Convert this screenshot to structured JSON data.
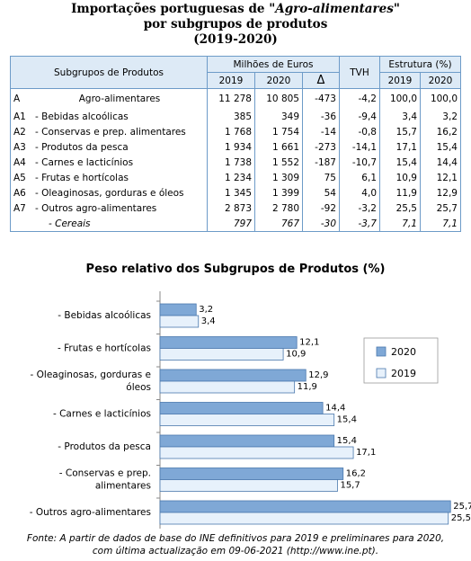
{
  "title": {
    "line1_prefix": "Importações portuguesas de ",
    "line1_italic": "\"Agro-alimentares\"",
    "line2": "por subgrupos de produtos",
    "line3": "(2019-2020)"
  },
  "table": {
    "header_subgrupos": "Subgrupos de Produtos",
    "header_milhoes": "Milhões de Euros",
    "header_y2019": "2019",
    "header_y2020": "2020",
    "header_delta": "Δ",
    "header_tvh": "TVH",
    "header_estrutura": "Estrutura (%)",
    "header_e2019": "2019",
    "header_e2020": "2020",
    "rows": [
      {
        "code": "A",
        "name": "Agro-alimentares",
        "v2019": "11 278",
        "v2020": "10 805",
        "delta": "-473",
        "tvh": "-4,2",
        "e2019": "100,0",
        "e2020": "100,0"
      },
      {
        "code": "A1",
        "name": "- Bebidas alcoólicas",
        "v2019": "385",
        "v2020": "349",
        "delta": "-36",
        "tvh": "-9,4",
        "e2019": "3,4",
        "e2020": "3,2"
      },
      {
        "code": "A2",
        "name": "- Conservas e prep. alimentares",
        "v2019": "1 768",
        "v2020": "1 754",
        "delta": "-14",
        "tvh": "-0,8",
        "e2019": "15,7",
        "e2020": "16,2"
      },
      {
        "code": "A3",
        "name": "- Produtos da pesca",
        "v2019": "1 934",
        "v2020": "1 661",
        "delta": "-273",
        "tvh": "-14,1",
        "e2019": "17,1",
        "e2020": "15,4"
      },
      {
        "code": "A4",
        "name": "- Carnes e lacticínios",
        "v2019": "1 738",
        "v2020": "1 552",
        "delta": "-187",
        "tvh": "-10,7",
        "e2019": "15,4",
        "e2020": "14,4"
      },
      {
        "code": "A5",
        "name": "- Frutas e hortícolas",
        "v2019": "1 234",
        "v2020": "1 309",
        "delta": "75",
        "tvh": "6,1",
        "e2019": "10,9",
        "e2020": "12,1"
      },
      {
        "code": "A6",
        "name": "- Oleaginosas, gorduras e óleos",
        "v2019": "1 345",
        "v2020": "1 399",
        "delta": "54",
        "tvh": "4,0",
        "e2019": "11,9",
        "e2020": "12,9"
      },
      {
        "code": "A7",
        "name": "- Outros agro-alimentares",
        "v2019": "2 873",
        "v2020": "2 780",
        "delta": "-92",
        "tvh": "-3,2",
        "e2019": "25,5",
        "e2020": "25,7"
      },
      {
        "code": "",
        "name": "- Cereais",
        "v2019": "797",
        "v2020": "767",
        "delta": "-30",
        "tvh": "-3,7",
        "e2019": "7,1",
        "e2020": "7,1"
      }
    ]
  },
  "chart_data": {
    "type": "bar",
    "orientation": "horizontal",
    "title": "Peso relativo dos Subgrupos de Produtos (%)",
    "categories": [
      "- Bebidas alcoólicas",
      "- Frutas e hortícolas",
      "- Oleaginosas, gorduras e óleos",
      "- Carnes e lacticínios",
      "- Produtos da pesca",
      "- Conservas e prep. alimentares",
      "- Outros agro-alimentares"
    ],
    "category_lines": [
      [
        "- Bebidas alcoólicas"
      ],
      [
        "- Frutas e hortícolas"
      ],
      [
        "- Oleaginosas, gorduras e",
        "óleos"
      ],
      [
        "- Carnes e lacticínios"
      ],
      [
        "- Produtos da pesca"
      ],
      [
        "- Conservas e prep.",
        "alimentares"
      ],
      [
        "- Outros agro-alimentares"
      ]
    ],
    "series": [
      {
        "name": "2020",
        "values": [
          3.2,
          12.1,
          12.9,
          14.4,
          15.4,
          16.2,
          25.7
        ],
        "labels": [
          "3,2",
          "12,1",
          "12,9",
          "14,4",
          "15,4",
          "16,2",
          "25,7"
        ],
        "color": "#7fa8d6"
      },
      {
        "name": "2019",
        "values": [
          3.4,
          10.9,
          11.9,
          15.4,
          17.1,
          15.7,
          25.5
        ],
        "labels": [
          "3,4",
          "10,9",
          "11,9",
          "15,4",
          "17,1",
          "15,7",
          "25,5"
        ],
        "color": "#e7f1fb"
      }
    ],
    "xlim": [
      0,
      26
    ],
    "grid": false,
    "legend_position": "right"
  },
  "footer": {
    "line1": "Fonte: A partir de dados de base do INE definitivos para 2019 e preliminares para 2020,",
    "line2": "com última actualização em 09-06-2021  (http://www.ine.pt)."
  }
}
